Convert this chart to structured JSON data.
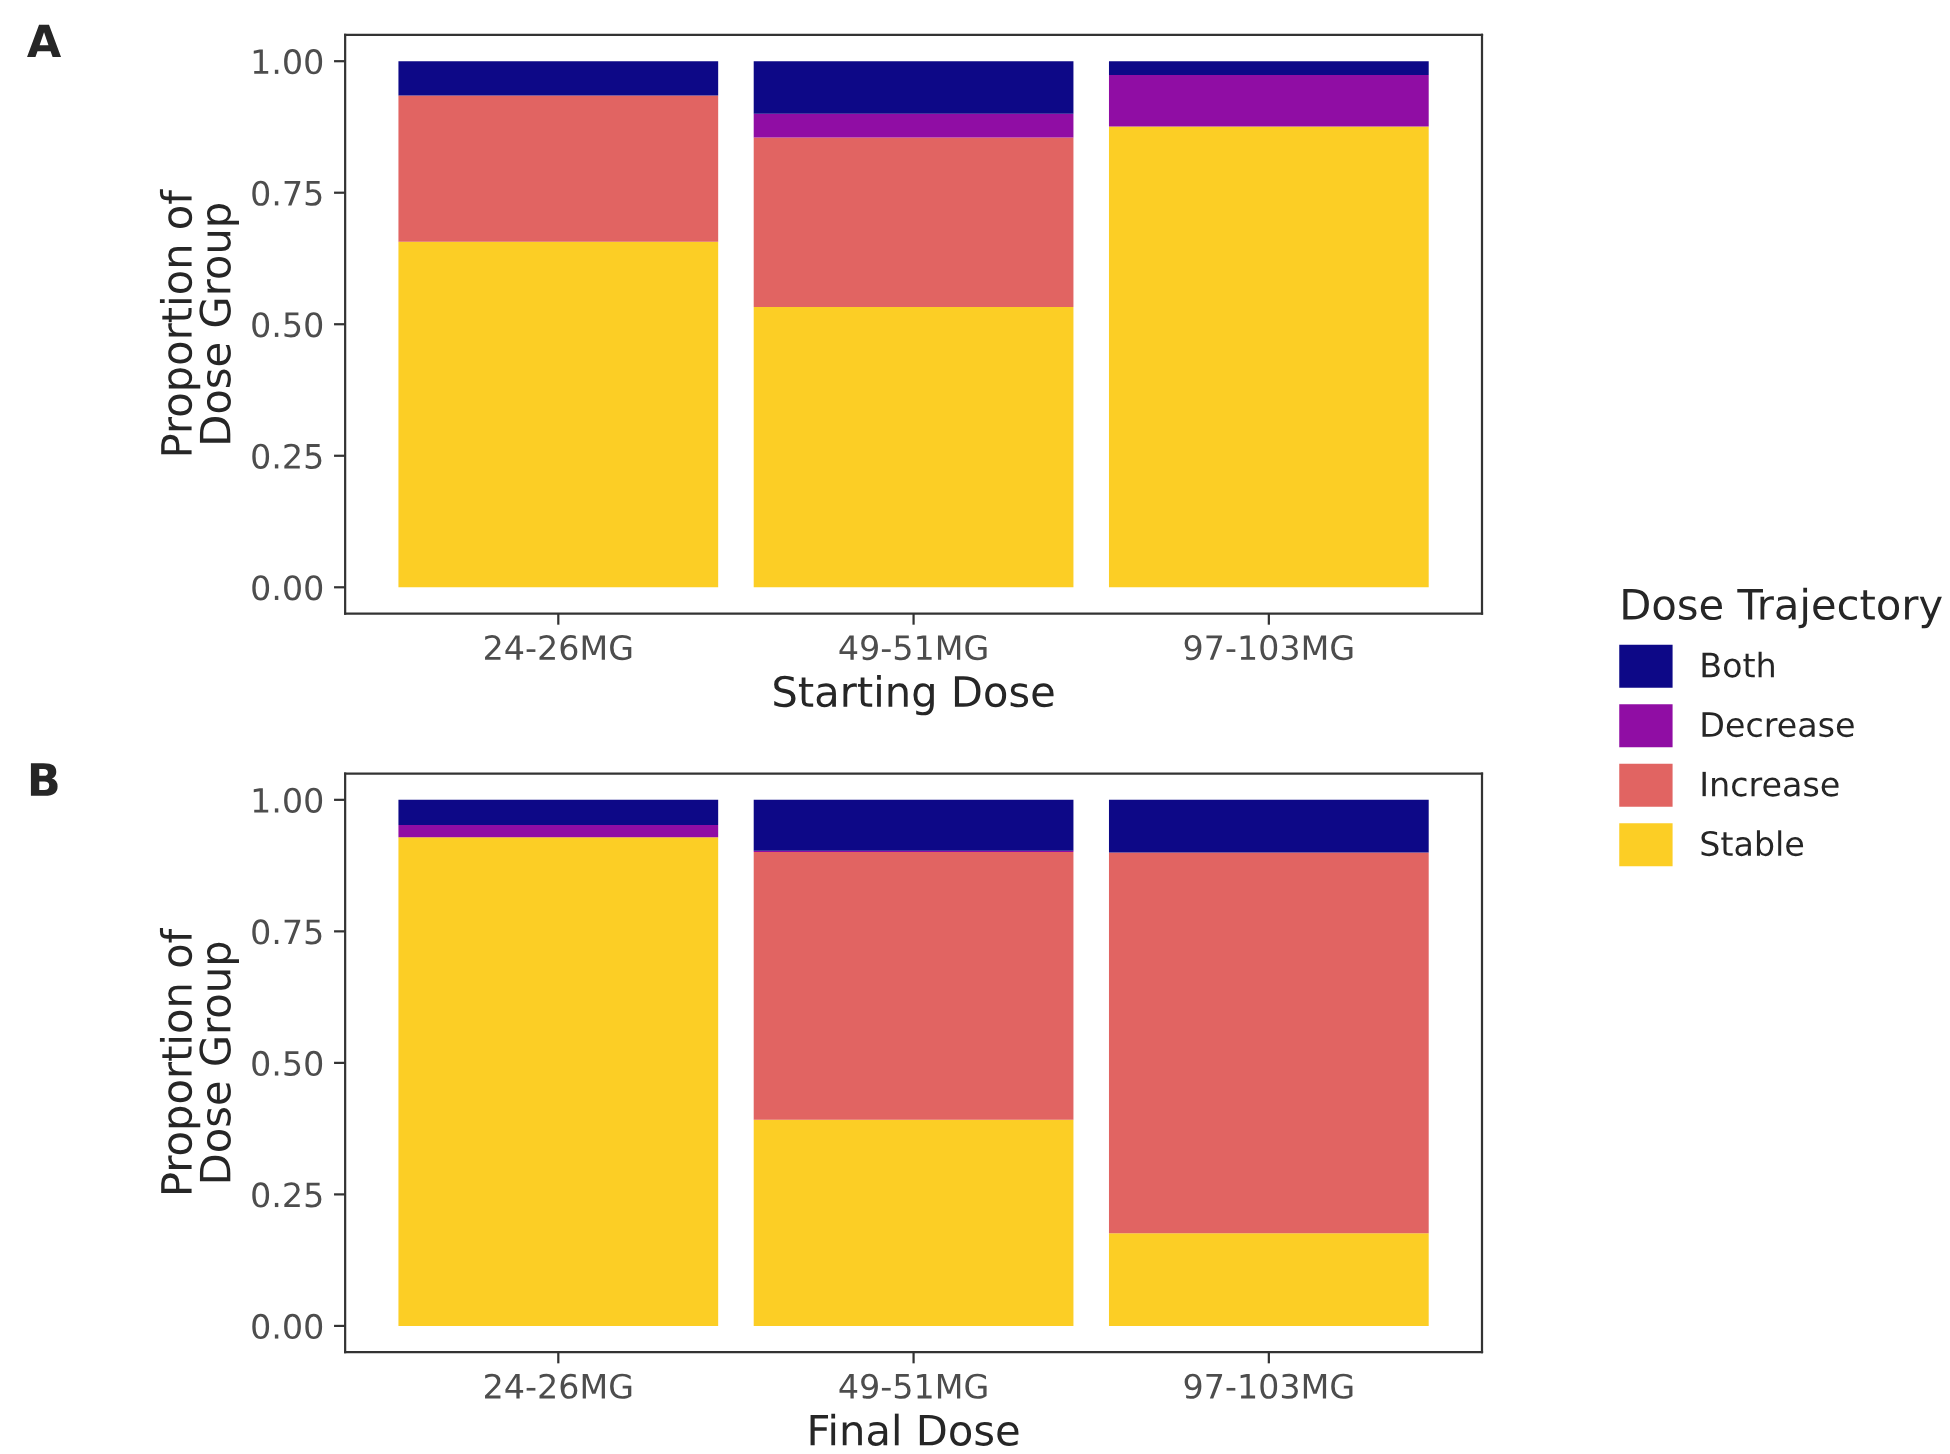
{
  "chart_data": [
    {
      "type": "bar",
      "stacked": true,
      "xlabel": "Starting Dose",
      "ylabel": "Proportion of\nDose Group",
      "legend_title": "Dose Trajectory",
      "legend": "right",
      "annotations": [
        "A"
      ],
      "categories": [
        "24-26MG",
        "49-51MG",
        "97-103MG"
      ],
      "ylim": [
        -0.05,
        1.05
      ],
      "yticks": [
        {
          "value": 0,
          "label": "0.00"
        },
        {
          "value": 0.25,
          "label": "0.25"
        },
        {
          "value": 0.5,
          "label": "0.50"
        },
        {
          "value": 0.75,
          "label": "0.75"
        },
        {
          "value": 1,
          "label": "1.00"
        }
      ],
      "series": [
        {
          "name": "Stable",
          "color": "#fcce25",
          "values": [
            0.657,
            0.533,
            0.876
          ]
        },
        {
          "name": "Increase",
          "color": "#e16462",
          "values": [
            0.278,
            0.322,
            0
          ]
        },
        {
          "name": "Decrease",
          "color": "#900da4",
          "values": [
            0,
            0.045,
            0.098
          ]
        },
        {
          "name": "Both",
          "color": "#0d0887",
          "values": [
            0.065,
            0.1,
            0.026
          ]
        }
      ]
    },
    {
      "type": "bar",
      "stacked": true,
      "xlabel": "Final Dose",
      "ylabel": "Proportion of\nDose Group",
      "annotations": [
        "B"
      ],
      "categories": [
        "24-26MG",
        "49-51MG",
        "97-103MG"
      ],
      "ylim": [
        -0.05,
        1.05
      ],
      "yticks": [
        {
          "value": 0,
          "label": "0.00"
        },
        {
          "value": 0.25,
          "label": "0.25"
        },
        {
          "value": 0.5,
          "label": "0.50"
        },
        {
          "value": 0.75,
          "label": "0.75"
        },
        {
          "value": 1,
          "label": "1.00"
        }
      ],
      "series": [
        {
          "color": "#fcce25",
          "values": [
            0.929,
            0.392,
            0.176
          ]
        },
        {
          "color": "#e16462",
          "values": [
            0,
            0.509,
            0.724
          ]
        },
        {
          "color": "#900da4",
          "values": [
            0.023,
            0.002,
            0
          ]
        },
        {
          "color": "#0d0887",
          "values": [
            0.048,
            0.097,
            0.1
          ]
        }
      ]
    }
  ]
}
